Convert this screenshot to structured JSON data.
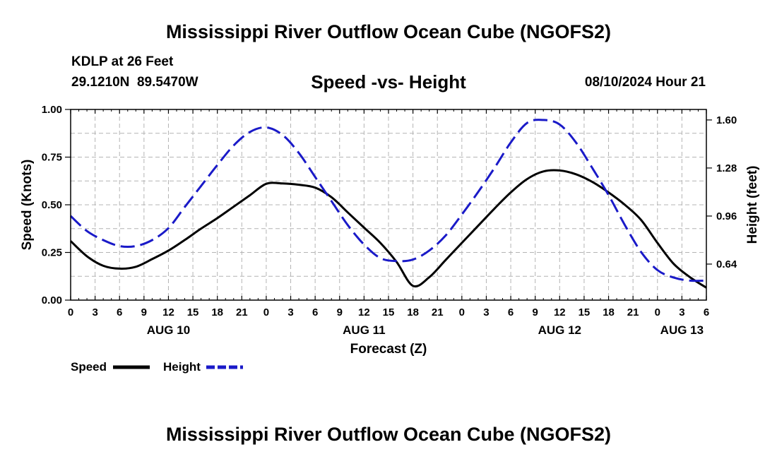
{
  "page": {
    "title": "Mississippi River Outflow Ocean Cube (NGOFS2)",
    "title_repeat": "Mississippi River Outflow Ocean Cube (NGOFS2)",
    "station_line": "KDLP at 26 Feet",
    "coords_line": "29.1210N  89.5470W",
    "date_line": "08/10/2024 Hour 21"
  },
  "chart_data": {
    "type": "line",
    "title": "Speed -vs- Height",
    "xlabel": "Forecast (Z)",
    "ylabel": "Speed (Knots)",
    "y2label": "Height (feet)",
    "xlim": [
      0,
      78
    ],
    "ylim": [
      0,
      1
    ],
    "y2lim": [
      0.4,
      1.67
    ],
    "x_tick_values": [
      0,
      3,
      6,
      9,
      12,
      15,
      18,
      21,
      24,
      27,
      30,
      33,
      36,
      39,
      42,
      45,
      48,
      51,
      54,
      57,
      60,
      63,
      66,
      69,
      72,
      75,
      78
    ],
    "x_tick_labels": [
      "0",
      "3",
      "6",
      "9",
      "12",
      "15",
      "18",
      "21",
      "0",
      "3",
      "6",
      "9",
      "12",
      "15",
      "18",
      "21",
      "0",
      "3",
      "6",
      "9",
      "12",
      "15",
      "18",
      "21",
      "0",
      "3",
      "6"
    ],
    "day_labels": [
      {
        "x": 12,
        "label": "AUG 10"
      },
      {
        "x": 36,
        "label": "AUG 11"
      },
      {
        "x": 60,
        "label": "AUG 12"
      },
      {
        "x": 75,
        "label": "AUG 13"
      }
    ],
    "y_ticks": [
      0.0,
      0.25,
      0.5,
      0.75,
      1.0
    ],
    "y_tick_labels": [
      "0.00",
      "0.25",
      "0.50",
      "0.75",
      "1.00"
    ],
    "y2_ticks": [
      0.64,
      0.96,
      1.28,
      1.6
    ],
    "y2_tick_labels": [
      "0.64",
      "0.96",
      "1.28",
      "1.60"
    ],
    "grid": true,
    "legend_position": "bottom-left",
    "series": [
      {
        "name": "Speed",
        "axis": "left",
        "color": "#000000",
        "style": "solid",
        "x": [
          0,
          2,
          4,
          6,
          8,
          10,
          12,
          14,
          16,
          18,
          20,
          22,
          24,
          26,
          28,
          30,
          32,
          34,
          36,
          38,
          40,
          42,
          44,
          46,
          48,
          50,
          52,
          54,
          56,
          58,
          60,
          62,
          64,
          66,
          68,
          70,
          72,
          74,
          76,
          78
        ],
        "values": [
          0.31,
          0.23,
          0.18,
          0.165,
          0.175,
          0.215,
          0.26,
          0.315,
          0.375,
          0.43,
          0.49,
          0.55,
          0.61,
          0.612,
          0.605,
          0.59,
          0.54,
          0.46,
          0.38,
          0.3,
          0.2,
          0.075,
          0.12,
          0.21,
          0.3,
          0.39,
          0.48,
          0.565,
          0.635,
          0.675,
          0.68,
          0.66,
          0.62,
          0.565,
          0.5,
          0.42,
          0.3,
          0.19,
          0.12,
          0.065
        ]
      },
      {
        "name": "Height",
        "axis": "right",
        "color": "#1a1ac8",
        "style": "dashed",
        "x": [
          0,
          2,
          4,
          6,
          8,
          10,
          12,
          14,
          16,
          18,
          20,
          22,
          24,
          26,
          28,
          30,
          32,
          34,
          36,
          38,
          40,
          42,
          44,
          46,
          48,
          50,
          52,
          54,
          56,
          58,
          60,
          62,
          64,
          66,
          68,
          70,
          72,
          74,
          76,
          78
        ],
        "values": [
          0.96,
          0.86,
          0.8,
          0.76,
          0.76,
          0.8,
          0.88,
          1.02,
          1.16,
          1.3,
          1.43,
          1.52,
          1.55,
          1.5,
          1.38,
          1.22,
          1.06,
          0.9,
          0.77,
          0.68,
          0.66,
          0.67,
          0.73,
          0.83,
          0.97,
          1.12,
          1.28,
          1.45,
          1.58,
          1.6,
          1.57,
          1.45,
          1.28,
          1.1,
          0.9,
          0.72,
          0.6,
          0.55,
          0.53,
          0.53
        ]
      }
    ]
  }
}
